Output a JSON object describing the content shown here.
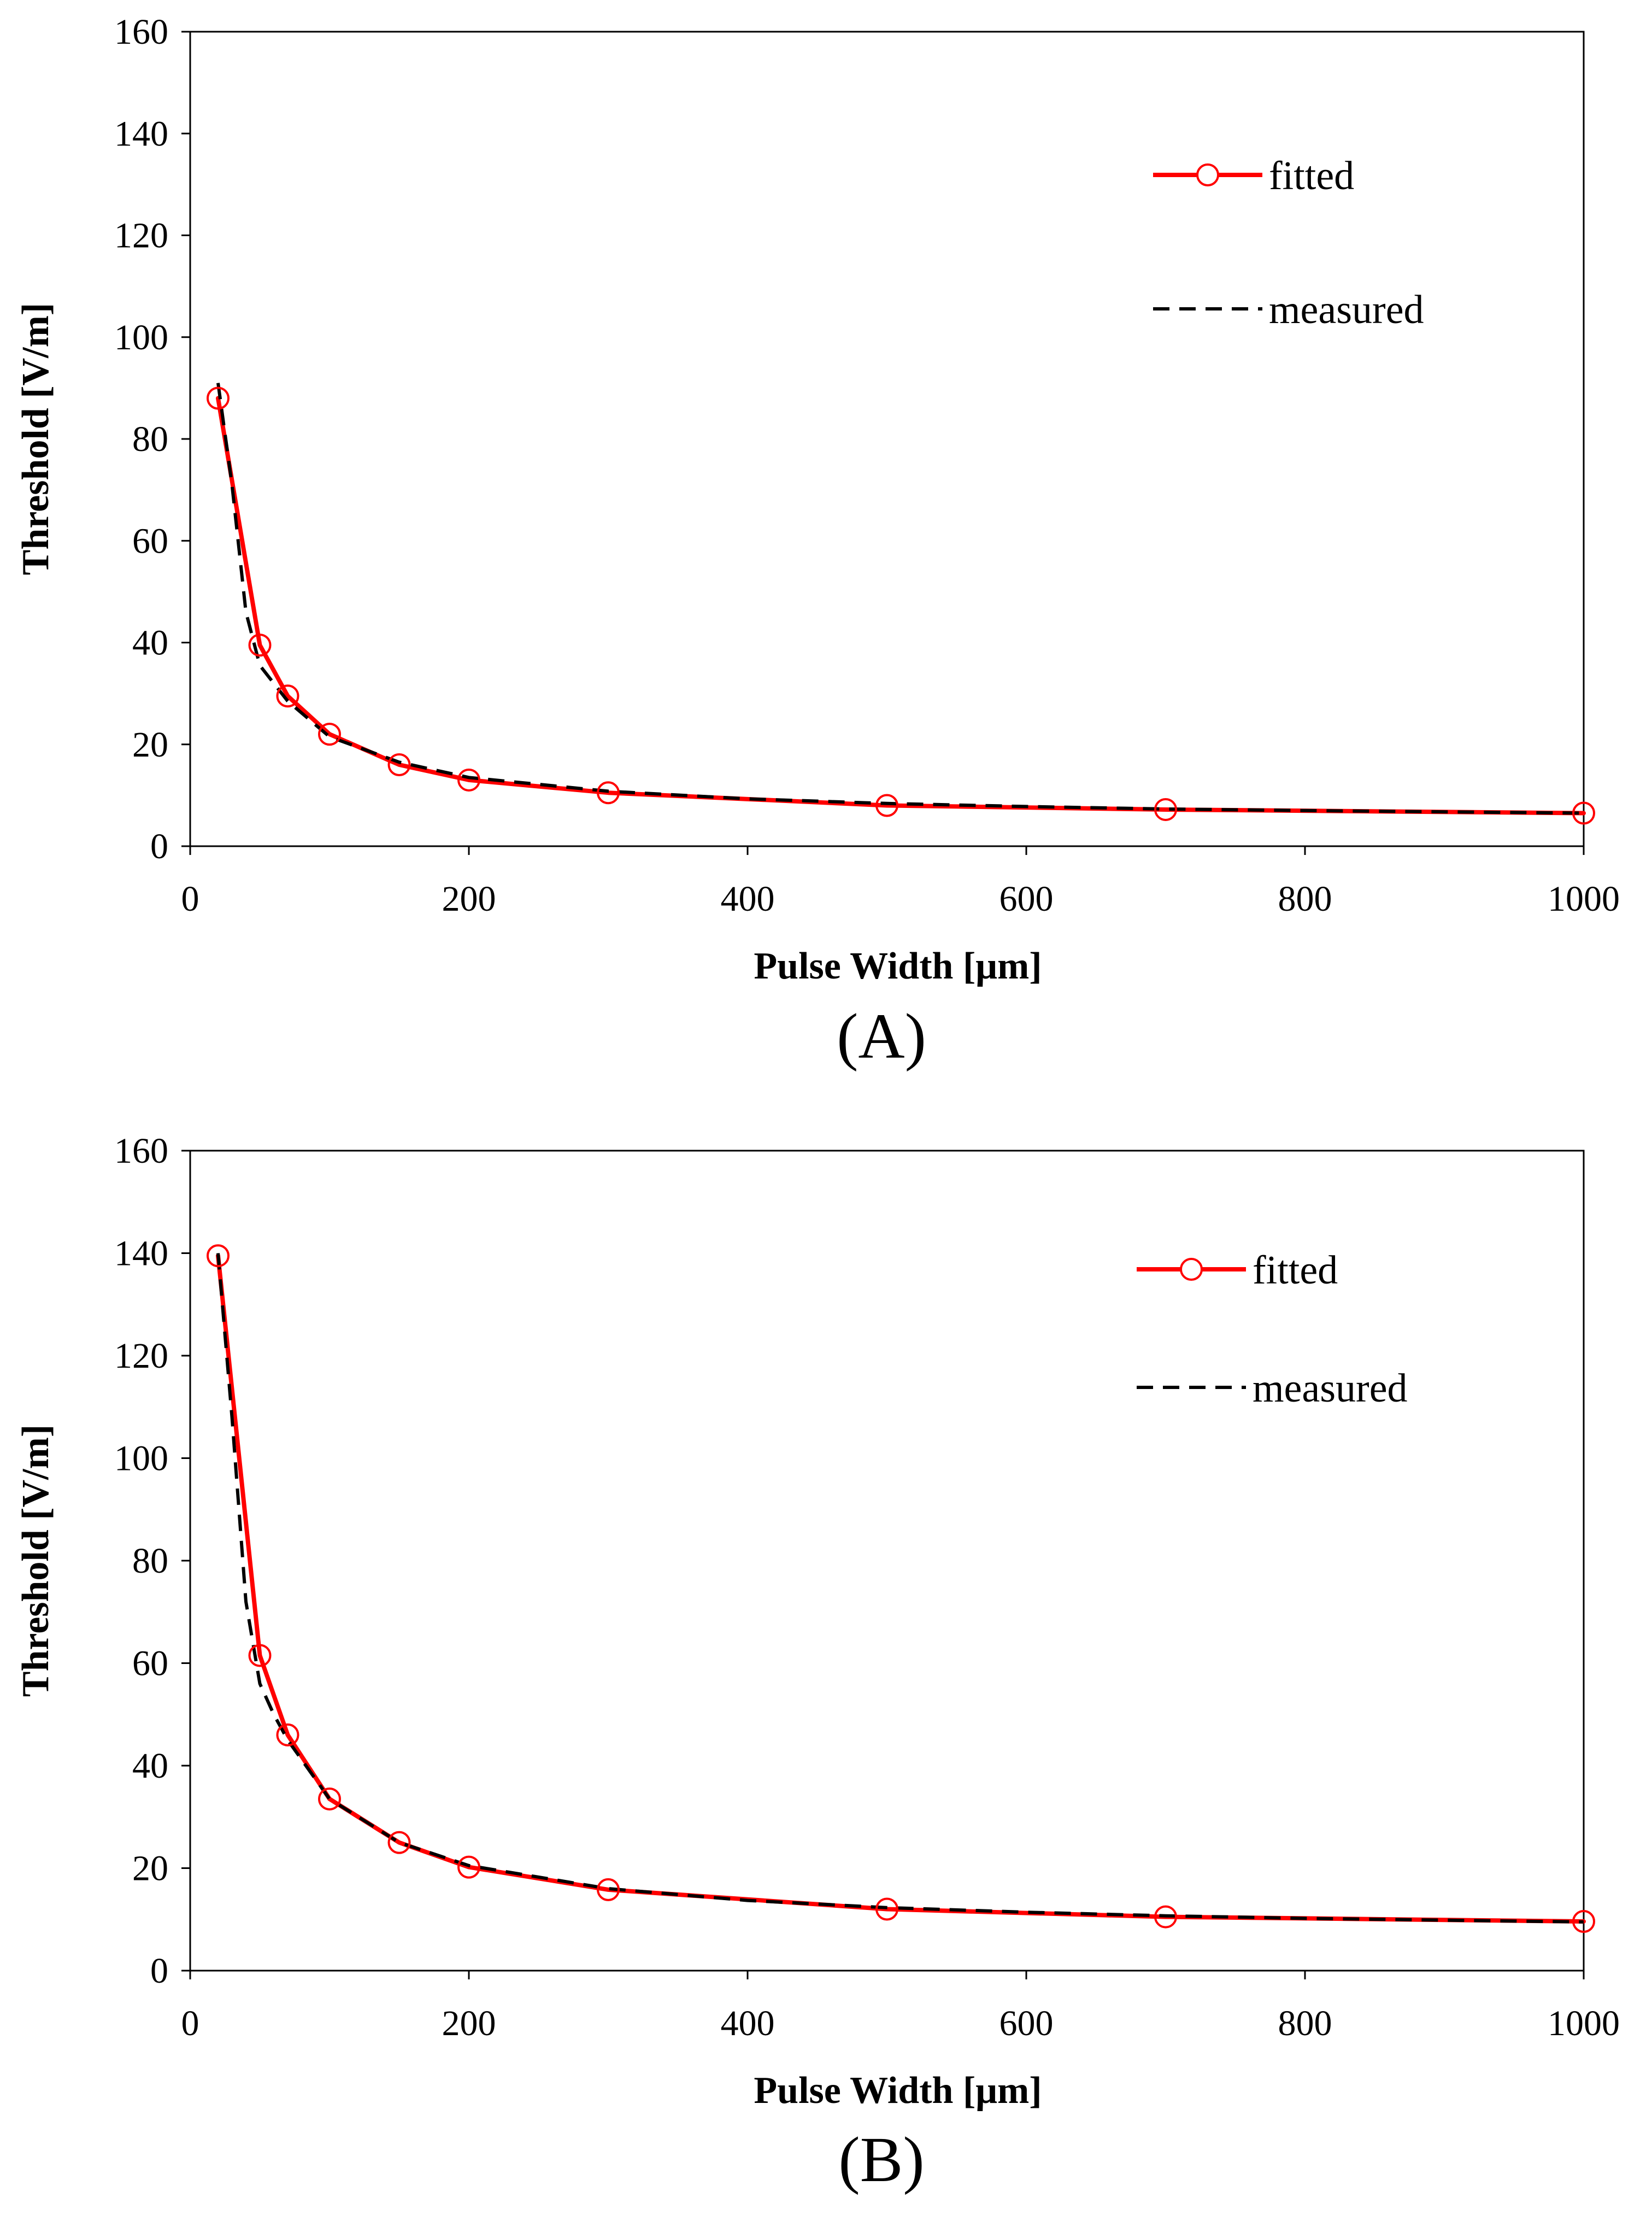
{
  "chart_data": [
    {
      "type": "line",
      "panel_label": "(A)",
      "title": "",
      "xlabel": "Pulse Width [μm]",
      "ylabel": "Threshold [V/m]",
      "xlim": [
        0,
        1000
      ],
      "ylim": [
        0,
        160
      ],
      "xticks": [
        0,
        200,
        400,
        600,
        800,
        1000
      ],
      "yticks": [
        0,
        20,
        40,
        60,
        80,
        100,
        120,
        140,
        160
      ],
      "grid": false,
      "legend_position": "top-right",
      "series": [
        {
          "name": "fitted",
          "style": "solid-with-circle-markers",
          "color": "#ff0000",
          "x": [
            20,
            50,
            70,
            100,
            150,
            200,
            300,
            500,
            700,
            1000
          ],
          "y": [
            88,
            39.5,
            29.5,
            22,
            16,
            13,
            10.5,
            8,
            7.2,
            6.5
          ]
        },
        {
          "name": "measured",
          "style": "dashed",
          "color": "#000000",
          "x": [
            20,
            30,
            40,
            50,
            70,
            100,
            150,
            200,
            300,
            400,
            500,
            600,
            700,
            800,
            1000
          ],
          "y": [
            91,
            71,
            46,
            35.5,
            28.5,
            21.5,
            16.5,
            13.5,
            10.8,
            9.3,
            8.4,
            7.8,
            7.3,
            7.0,
            6.5
          ]
        }
      ]
    },
    {
      "type": "line",
      "panel_label": "(B)",
      "title": "",
      "xlabel": "Pulse Width [μm]",
      "ylabel": "Threshold [V/m]",
      "xlim": [
        0,
        1000
      ],
      "ylim": [
        0,
        160
      ],
      "xticks": [
        0,
        200,
        400,
        600,
        800,
        1000
      ],
      "yticks": [
        0,
        20,
        40,
        60,
        80,
        100,
        120,
        140,
        160
      ],
      "grid": false,
      "legend_position": "top-right",
      "series": [
        {
          "name": "fitted",
          "style": "solid-with-circle-markers",
          "color": "#ff0000",
          "x": [
            20,
            50,
            70,
            100,
            150,
            200,
            300,
            500,
            700,
            1000
          ],
          "y": [
            139.5,
            61.5,
            46,
            33.5,
            25,
            20.2,
            15.8,
            12,
            10.5,
            9.6
          ]
        },
        {
          "name": "measured",
          "style": "dashed",
          "color": "#000000",
          "x": [
            20,
            30,
            40,
            50,
            60,
            70,
            100,
            150,
            200,
            300,
            400,
            500,
            600,
            700,
            800,
            1000
          ],
          "y": [
            140,
            108,
            72,
            56,
            50,
            45,
            33.5,
            25,
            20.5,
            16,
            13.7,
            12.3,
            11.4,
            10.7,
            10.2,
            9.5
          ]
        }
      ]
    }
  ]
}
